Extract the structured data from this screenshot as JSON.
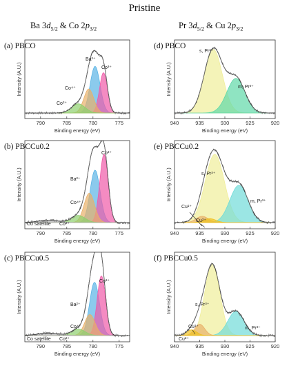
{
  "title": "Pristine",
  "columns": {
    "left": {
      "pre": "Ba 3",
      "orb1": "d",
      "sub1": "5/2",
      "mid": " & Co 2",
      "orb2": "p",
      "sub2": "3/2"
    },
    "right": {
      "pre": "Pr 3",
      "orb1": "d",
      "sub1": "5/2",
      "mid": " & Cu 2",
      "orb2": "p",
      "sub2": "3/2"
    }
  },
  "colors": {
    "Ba2+": "#5ab4e6",
    "Co3+": "#f05aa8",
    "Co4+": "#e8b06a",
    "Co2+": "#8ed06e",
    "Cosat": "#b0b0b0",
    "sPr3+": "#f0ee9a",
    "mPr3+": "#60d8a8",
    "mPr3+_b": "#70dcd8",
    "Cu1+": "#e8b06a",
    "Cu2+": "#f0c020"
  },
  "chart_data": [
    {
      "type": "area",
      "panel": "(a)",
      "name": "PBCO",
      "xlabel": "Binding energy (eV)",
      "ylabel": "Intensity (A.U.)",
      "xlim": [
        793,
        773
      ],
      "xticks": [
        790,
        785,
        780,
        775
      ],
      "ylim": [
        0,
        1
      ],
      "components": [
        {
          "label": "Ba²⁺",
          "center": 779.6,
          "height": 0.66,
          "width": 0.95,
          "color": "#5ab4e6"
        },
        {
          "label": "Co³⁺",
          "center": 778.0,
          "height": 0.57,
          "width": 0.75,
          "color": "#f05aa8"
        },
        {
          "label": "Co⁴⁺",
          "center": 780.8,
          "height": 0.34,
          "width": 0.95,
          "color": "#e8b06a"
        },
        {
          "label": "Co²⁺",
          "center": 782.8,
          "height": 0.13,
          "width": 1.3,
          "color": "#8ed06e"
        }
      ]
    },
    {
      "type": "area",
      "panel": "(b)",
      "name": "PBCCu0.2",
      "xlabel": "Binding energy (eV)",
      "ylabel": "Intensity (A.U.)",
      "xlim": [
        793,
        773
      ],
      "xticks": [
        790,
        785,
        780,
        775
      ],
      "ylim": [
        0,
        1
      ],
      "components": [
        {
          "label": "Ba²⁺",
          "center": 779.6,
          "height": 0.66,
          "width": 0.95,
          "color": "#5ab4e6"
        },
        {
          "label": "Co³⁺",
          "center": 777.9,
          "height": 0.86,
          "width": 0.8,
          "color": "#f05aa8"
        },
        {
          "label": "Co⁴⁺",
          "center": 780.7,
          "height": 0.37,
          "width": 1.0,
          "color": "#e8b06a"
        },
        {
          "label": "Co²⁺",
          "center": 782.8,
          "height": 0.09,
          "width": 1.3,
          "color": "#8ed06e"
        },
        {
          "label": "Co satellite",
          "center": 788.5,
          "height": 0.03,
          "width": 2.0,
          "color": "#b0b0b0"
        }
      ]
    },
    {
      "type": "area",
      "panel": "(c)",
      "name": "PBCCu0.5",
      "xlabel": "Binding energy (eV)",
      "ylabel": "Intensity (A.U.)",
      "xlim": [
        793,
        773
      ],
      "xticks": [
        790,
        785,
        780,
        775
      ],
      "ylim": [
        0,
        1
      ],
      "components": [
        {
          "label": "Ba²⁺",
          "center": 779.7,
          "height": 0.66,
          "width": 0.95,
          "color": "#5ab4e6"
        },
        {
          "label": "Co³⁺",
          "center": 778.4,
          "height": 0.74,
          "width": 0.8,
          "color": "#f05aa8"
        },
        {
          "label": "Co⁴⁺",
          "center": 780.6,
          "height": 0.26,
          "width": 1.0,
          "color": "#e8b06a"
        },
        {
          "label": "Co²⁺",
          "center": 782.8,
          "height": 0.08,
          "width": 1.3,
          "color": "#8ed06e"
        },
        {
          "label": "Co satellite",
          "center": 788.5,
          "height": 0.03,
          "width": 2.0,
          "color": "#b0b0b0"
        }
      ]
    },
    {
      "type": "area",
      "panel": "(d)",
      "name": "PBCO",
      "xlabel": "Binding energy (eV)",
      "ylabel": "Intensity (A.U.)",
      "xlim": [
        940,
        920
      ],
      "xticks": [
        940,
        935,
        930,
        925,
        920
      ],
      "ylim": [
        0,
        1
      ],
      "components": [
        {
          "label": "s, Pr³⁺",
          "center": 932.3,
          "height": 0.9,
          "width": 1.8,
          "color": "#f0ee9a"
        },
        {
          "label": "m, Pr³⁺",
          "center": 927.8,
          "height": 0.49,
          "width": 1.8,
          "color": "#60d8a8"
        }
      ]
    },
    {
      "type": "area",
      "panel": "(e)",
      "name": "PBCCu0.2",
      "xlabel": "Binding energy (eV)",
      "ylabel": "Intensity (A.U.)",
      "xlim": [
        940,
        920
      ],
      "xticks": [
        940,
        935,
        930,
        925,
        920
      ],
      "ylim": [
        0,
        1
      ],
      "components": [
        {
          "label": "s, Pr³⁺",
          "center": 932.0,
          "height": 0.86,
          "width": 1.9,
          "color": "#f0ee9a"
        },
        {
          "label": "m, Pr³⁺",
          "center": 927.2,
          "height": 0.47,
          "width": 1.8,
          "color": "#70dcd8"
        },
        {
          "label": "Cu¹⁺",
          "center": 934.5,
          "height": 0.08,
          "width": 1.2,
          "color": "#e8b06a"
        },
        {
          "label": "Cu²⁺",
          "center": 933.0,
          "height": 0.05,
          "width": 1.2,
          "color": "#f0c020"
        }
      ]
    },
    {
      "type": "area",
      "panel": "(f)",
      "name": "PBCCu0.5",
      "xlabel": "Binding energy (eV)",
      "ylabel": "Intensity (A.U.)",
      "xlim": [
        940,
        920
      ],
      "xticks": [
        940,
        935,
        930,
        925,
        920
      ],
      "ylim": [
        0,
        1
      ],
      "components": [
        {
          "label": "s, Pr³⁺",
          "center": 932.5,
          "height": 0.88,
          "width": 1.5,
          "color": "#f0ee9a"
        },
        {
          "label": "m, Pr³⁺",
          "center": 927.8,
          "height": 0.3,
          "width": 1.6,
          "color": "#70dcd8"
        },
        {
          "label": "Cu¹⁺",
          "center": 935.0,
          "height": 0.14,
          "width": 1.0,
          "color": "#e8b06a"
        },
        {
          "label": "Cu²⁺",
          "center": 936.6,
          "height": 0.07,
          "width": 1.0,
          "color": "#f0c020"
        }
      ]
    }
  ]
}
